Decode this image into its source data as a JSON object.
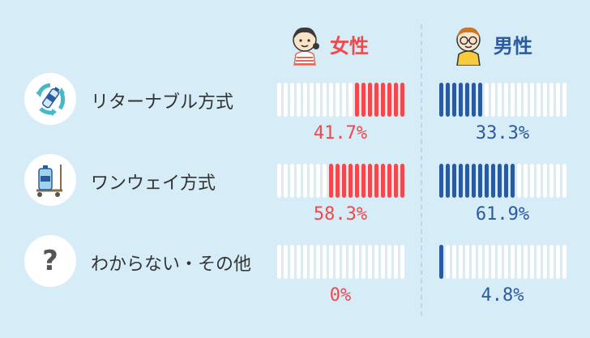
{
  "chart_data": {
    "type": "bar",
    "categories": [
      "リターナブル方式",
      "ワンウェイ方式",
      "わからない・その他"
    ],
    "series": [
      {
        "name": "女性",
        "values": [
          41.7,
          58.3,
          0
        ]
      },
      {
        "name": "男性",
        "values": [
          33.3,
          61.9,
          4.8
        ]
      }
    ],
    "value_labels": {
      "女性": [
        "41.7%",
        "58.3%",
        "0%"
      ],
      "男性": [
        "33.3%",
        "61.9%",
        "4.8%"
      ]
    },
    "ylim": [
      0,
      100
    ],
    "segments": 20
  },
  "question_mark": "?",
  "colors": {
    "female": "#f2474b",
    "male": "#2c5aa0",
    "empty_segment": "#ffffff",
    "background": "#d6ecf7",
    "icon_teal": "#47b8c6"
  },
  "icons": [
    "recycle-bottle-icon",
    "water-jug-cart-icon",
    "question-icon",
    "woman-avatar-icon",
    "man-avatar-icon"
  ]
}
